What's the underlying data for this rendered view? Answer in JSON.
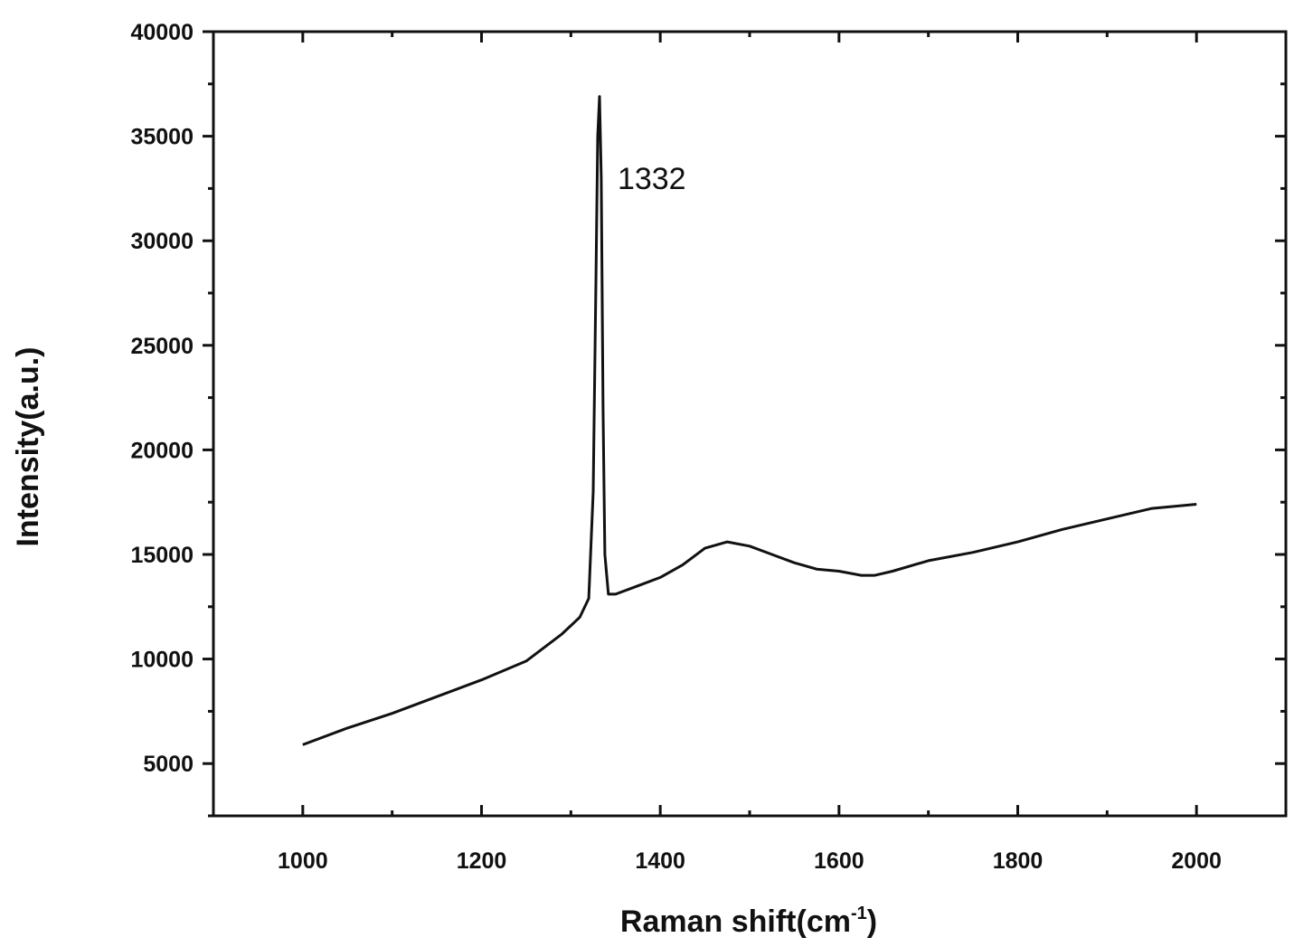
{
  "chart_data": {
    "type": "line",
    "title": "",
    "xlabel": "Raman shift(cm",
    "xlabel_sup": "-1",
    "xlabel_close": ")",
    "ylabel": "Intensity(a.u.)",
    "xlim": [
      900,
      2100
    ],
    "ylim": [
      2500,
      40000
    ],
    "x_ticks": [
      1000,
      1200,
      1400,
      1600,
      1800,
      2000
    ],
    "x_tick_labels": [
      "1000",
      "1200",
      "1400",
      "1600",
      "1800",
      "2000"
    ],
    "y_ticks": [
      5000,
      10000,
      15000,
      20000,
      25000,
      30000,
      35000,
      40000
    ],
    "y_tick_labels": [
      "5000",
      "10000",
      "15000",
      "20000",
      "25000",
      "30000",
      "35000",
      "40000"
    ],
    "grid": false,
    "legend": "none",
    "line_color": "#111111",
    "annotations": [
      {
        "text": "1332",
        "x": 1332,
        "y": 33000
      }
    ],
    "series": [
      {
        "x": [
          1000,
          1050,
          1100,
          1150,
          1200,
          1250,
          1290,
          1310,
          1320,
          1325,
          1328,
          1330,
          1332,
          1334,
          1336,
          1338,
          1342,
          1350,
          1375,
          1400,
          1425,
          1450,
          1475,
          1500,
          1525,
          1550,
          1575,
          1600,
          1625,
          1640,
          1660,
          1700,
          1750,
          1800,
          1850,
          1900,
          1950,
          2000
        ],
        "y": [
          5900,
          6700,
          7400,
          8200,
          9000,
          9900,
          11200,
          12000,
          12900,
          18000,
          28000,
          35000,
          36900,
          33000,
          22000,
          15000,
          13100,
          13100,
          13500,
          13900,
          14500,
          15300,
          15600,
          15400,
          15000,
          14600,
          14300,
          14200,
          14000,
          14000,
          14200,
          14700,
          15100,
          15600,
          16200,
          16700,
          17200,
          17400
        ]
      }
    ]
  }
}
